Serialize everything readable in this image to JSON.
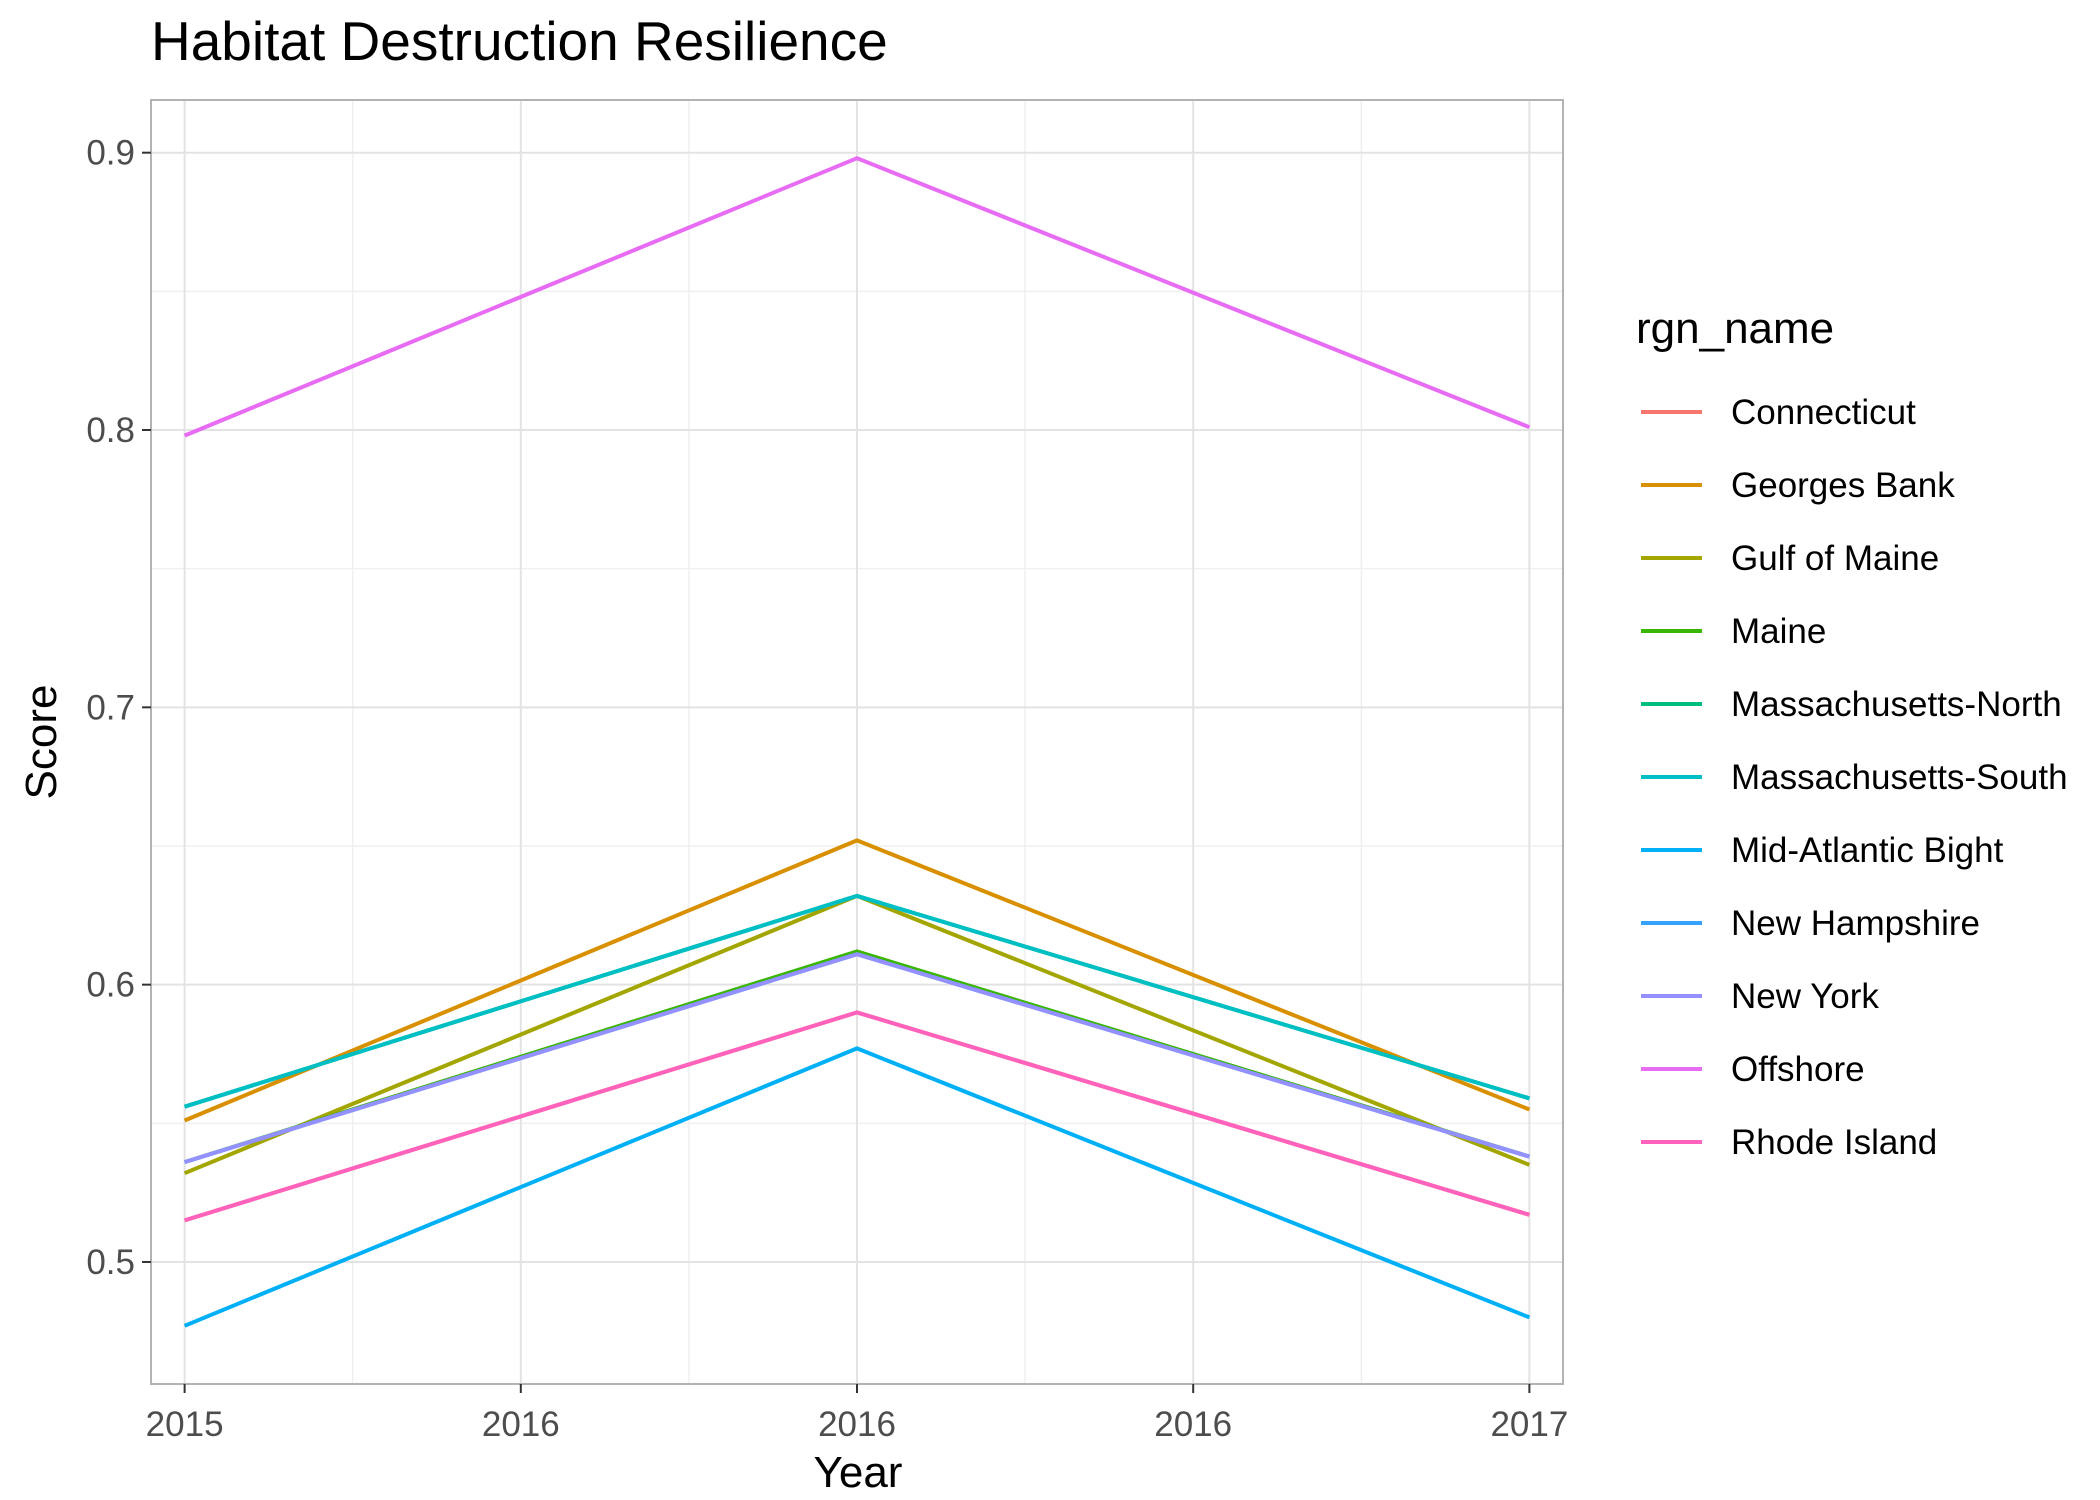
{
  "chart_data": {
    "type": "line",
    "title": "Habitat Destruction Resilience",
    "xlabel": "Year",
    "ylabel": "Score",
    "x_ticks": [
      "2015",
      "2016",
      "2016",
      "2016",
      "2017"
    ],
    "x_tick_values": [
      2015,
      2015.5,
      2016,
      2016.5,
      2017
    ],
    "xlim": [
      2014.95,
      2017.05
    ],
    "y_ticks": [
      "0.5",
      "0.6",
      "0.7",
      "0.8",
      "0.9"
    ],
    "y_tick_values": [
      0.5,
      0.6,
      0.7,
      0.8,
      0.9
    ],
    "ylim": [
      0.456,
      0.919
    ],
    "grid": true,
    "legend_title": "rgn_name",
    "legend_position": "right",
    "x": [
      2015,
      2016,
      2017
    ],
    "series": [
      {
        "name": "Connecticut",
        "color": "#F8766D",
        "values": [
          0.515,
          0.59,
          0.517
        ]
      },
      {
        "name": "Georges Bank",
        "color": "#D89000",
        "values": [
          0.551,
          0.652,
          0.555
        ]
      },
      {
        "name": "Gulf of Maine",
        "color": "#A3A500",
        "values": [
          0.532,
          0.632,
          0.535
        ]
      },
      {
        "name": "Maine",
        "color": "#39B600",
        "values": [
          0.536,
          0.612,
          0.538
        ]
      },
      {
        "name": "Massachusetts-North",
        "color": "#00BF7D",
        "values": [
          0.556,
          0.632,
          0.559
        ]
      },
      {
        "name": "Massachusetts-South",
        "color": "#00BFC4",
        "values": [
          0.556,
          0.632,
          0.559
        ]
      },
      {
        "name": "Mid-Atlantic Bight",
        "color": "#00B0F6",
        "values": [
          0.477,
          0.577,
          0.48
        ]
      },
      {
        "name": "New Hampshire",
        "color": "#35A2FF",
        "values": [
          0.536,
          0.611,
          0.538
        ]
      },
      {
        "name": "New York",
        "color": "#9590FF",
        "values": [
          0.536,
          0.611,
          0.538
        ]
      },
      {
        "name": "Offshore",
        "color": "#E76BF3",
        "values": [
          0.798,
          0.898,
          0.801
        ]
      },
      {
        "name": "Rhode Island",
        "color": "#FF62BC",
        "values": [
          0.515,
          0.59,
          0.517
        ]
      }
    ]
  }
}
